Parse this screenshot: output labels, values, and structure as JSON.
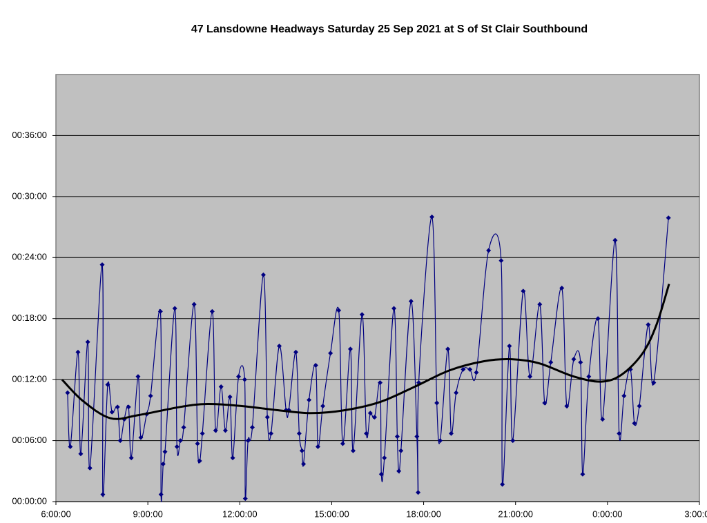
{
  "chart_data": {
    "type": "line",
    "title": "47 Lansdowne Headways Saturday 25 Sep 2021 at S of St Clair Southbound",
    "xlim": [
      6,
      27
    ],
    "xticks": [
      {
        "value": 6,
        "label": "6:00:00"
      },
      {
        "value": 9,
        "label": "9:00:00"
      },
      {
        "value": 12,
        "label": "12:00:00"
      },
      {
        "value": 15,
        "label": "15:00:00"
      },
      {
        "value": 18,
        "label": "18:00:00"
      },
      {
        "value": 21,
        "label": "21:00:00"
      },
      {
        "value": 24,
        "label": "0:00:00"
      },
      {
        "value": 27,
        "label": "3:00:00"
      }
    ],
    "ylim": [
      0,
      42
    ],
    "yticks": [
      {
        "value": 0,
        "label": "00:00:00"
      },
      {
        "value": 6,
        "label": "00:06:00"
      },
      {
        "value": 12,
        "label": "00:12:00"
      },
      {
        "value": 18,
        "label": "00:18:00"
      },
      {
        "value": 24,
        "label": "00:24:00"
      },
      {
        "value": 30,
        "label": "00:30:00"
      },
      {
        "value": 36,
        "label": "00:36:00"
      }
    ],
    "grid": true,
    "background": "#c0c0c0",
    "series": [
      {
        "color": "#000080",
        "markers": true,
        "x": [
          6.38,
          6.47,
          6.72,
          6.81,
          7.04,
          7.11,
          7.51,
          7.53,
          7.69,
          7.83,
          8.01,
          8.1,
          8.23,
          8.37,
          8.46,
          8.68,
          8.77,
          8.96,
          9.09,
          9.41,
          9.43,
          9.5,
          9.56,
          9.88,
          9.95,
          10.06,
          10.17,
          10.51,
          10.62,
          10.69,
          10.78,
          11.1,
          11.21,
          11.39,
          11.53,
          11.68,
          11.77,
          11.96,
          12.16,
          12.18,
          12.27,
          12.41,
          12.77,
          12.9,
          13.02,
          13.29,
          13.51,
          13.6,
          13.83,
          13.94,
          14.03,
          14.08,
          14.26,
          14.48,
          14.55,
          14.71,
          14.96,
          15.23,
          15.36,
          15.61,
          15.7,
          15.99,
          16.13,
          16.26,
          16.4,
          16.58,
          16.62,
          16.72,
          17.03,
          17.14,
          17.19,
          17.26,
          17.59,
          17.78,
          17.82,
          17.84,
          18.27,
          18.43,
          18.54,
          18.79,
          18.9,
          19.06,
          19.29,
          19.51,
          19.72,
          20.12,
          20.53,
          20.57,
          20.8,
          20.91,
          21.25,
          21.47,
          21.79,
          21.95,
          22.15,
          22.51,
          22.67,
          22.9,
          23.12,
          23.19,
          23.39,
          23.69,
          23.84,
          24.25,
          24.38,
          24.54,
          24.75,
          24.88,
          25.04,
          25.33,
          25.51,
          25.99
        ],
        "values": [
          10.7,
          5.4,
          14.7,
          4.7,
          15.7,
          3.3,
          23.3,
          0.7,
          11.5,
          8.8,
          9.3,
          6.0,
          8.1,
          9.3,
          4.3,
          12.3,
          6.3,
          8.6,
          10.4,
          18.7,
          0.7,
          3.7,
          4.9,
          19.0,
          5.4,
          6.0,
          7.3,
          19.4,
          5.7,
          4.0,
          6.7,
          18.7,
          7.0,
          11.3,
          7.0,
          10.3,
          4.3,
          12.3,
          12.0,
          0.3,
          6.0,
          7.3,
          22.3,
          8.3,
          6.7,
          15.3,
          9.0,
          9.0,
          14.7,
          6.7,
          5.0,
          3.7,
          10.0,
          13.4,
          5.4,
          9.4,
          14.6,
          18.8,
          5.7,
          15.0,
          5.0,
          18.4,
          6.7,
          8.7,
          8.3,
          11.7,
          2.7,
          4.3,
          19.0,
          6.4,
          3.0,
          5.0,
          19.7,
          6.4,
          0.9,
          11.7,
          28.0,
          9.7,
          6.0,
          15.0,
          6.7,
          10.7,
          13.0,
          13.0,
          12.7,
          24.7,
          23.7,
          1.7,
          15.3,
          6.0,
          20.7,
          12.3,
          19.4,
          9.7,
          13.7,
          21.0,
          9.4,
          14.0,
          13.7,
          2.7,
          12.3,
          18.0,
          8.1,
          25.7,
          6.7,
          10.4,
          13.0,
          7.7,
          9.4,
          17.4,
          11.7,
          27.9
        ]
      },
      {
        "color": "#000000",
        "markers": false,
        "x": [
          6.2,
          6.88,
          7.78,
          8.68,
          10.04,
          10.94,
          12.07,
          13.2,
          14.32,
          15.45,
          16.58,
          17.71,
          18.84,
          19.96,
          20.87,
          21.77,
          22.9,
          23.8,
          24.47,
          25.15,
          25.6,
          26.01
        ],
        "values": [
          12.0,
          9.9,
          8.2,
          8.5,
          9.3,
          9.6,
          9.4,
          9.0,
          8.7,
          9.0,
          9.8,
          11.3,
          12.9,
          13.8,
          14.0,
          13.6,
          12.3,
          11.8,
          12.5,
          14.6,
          17.4,
          21.4
        ]
      }
    ]
  }
}
